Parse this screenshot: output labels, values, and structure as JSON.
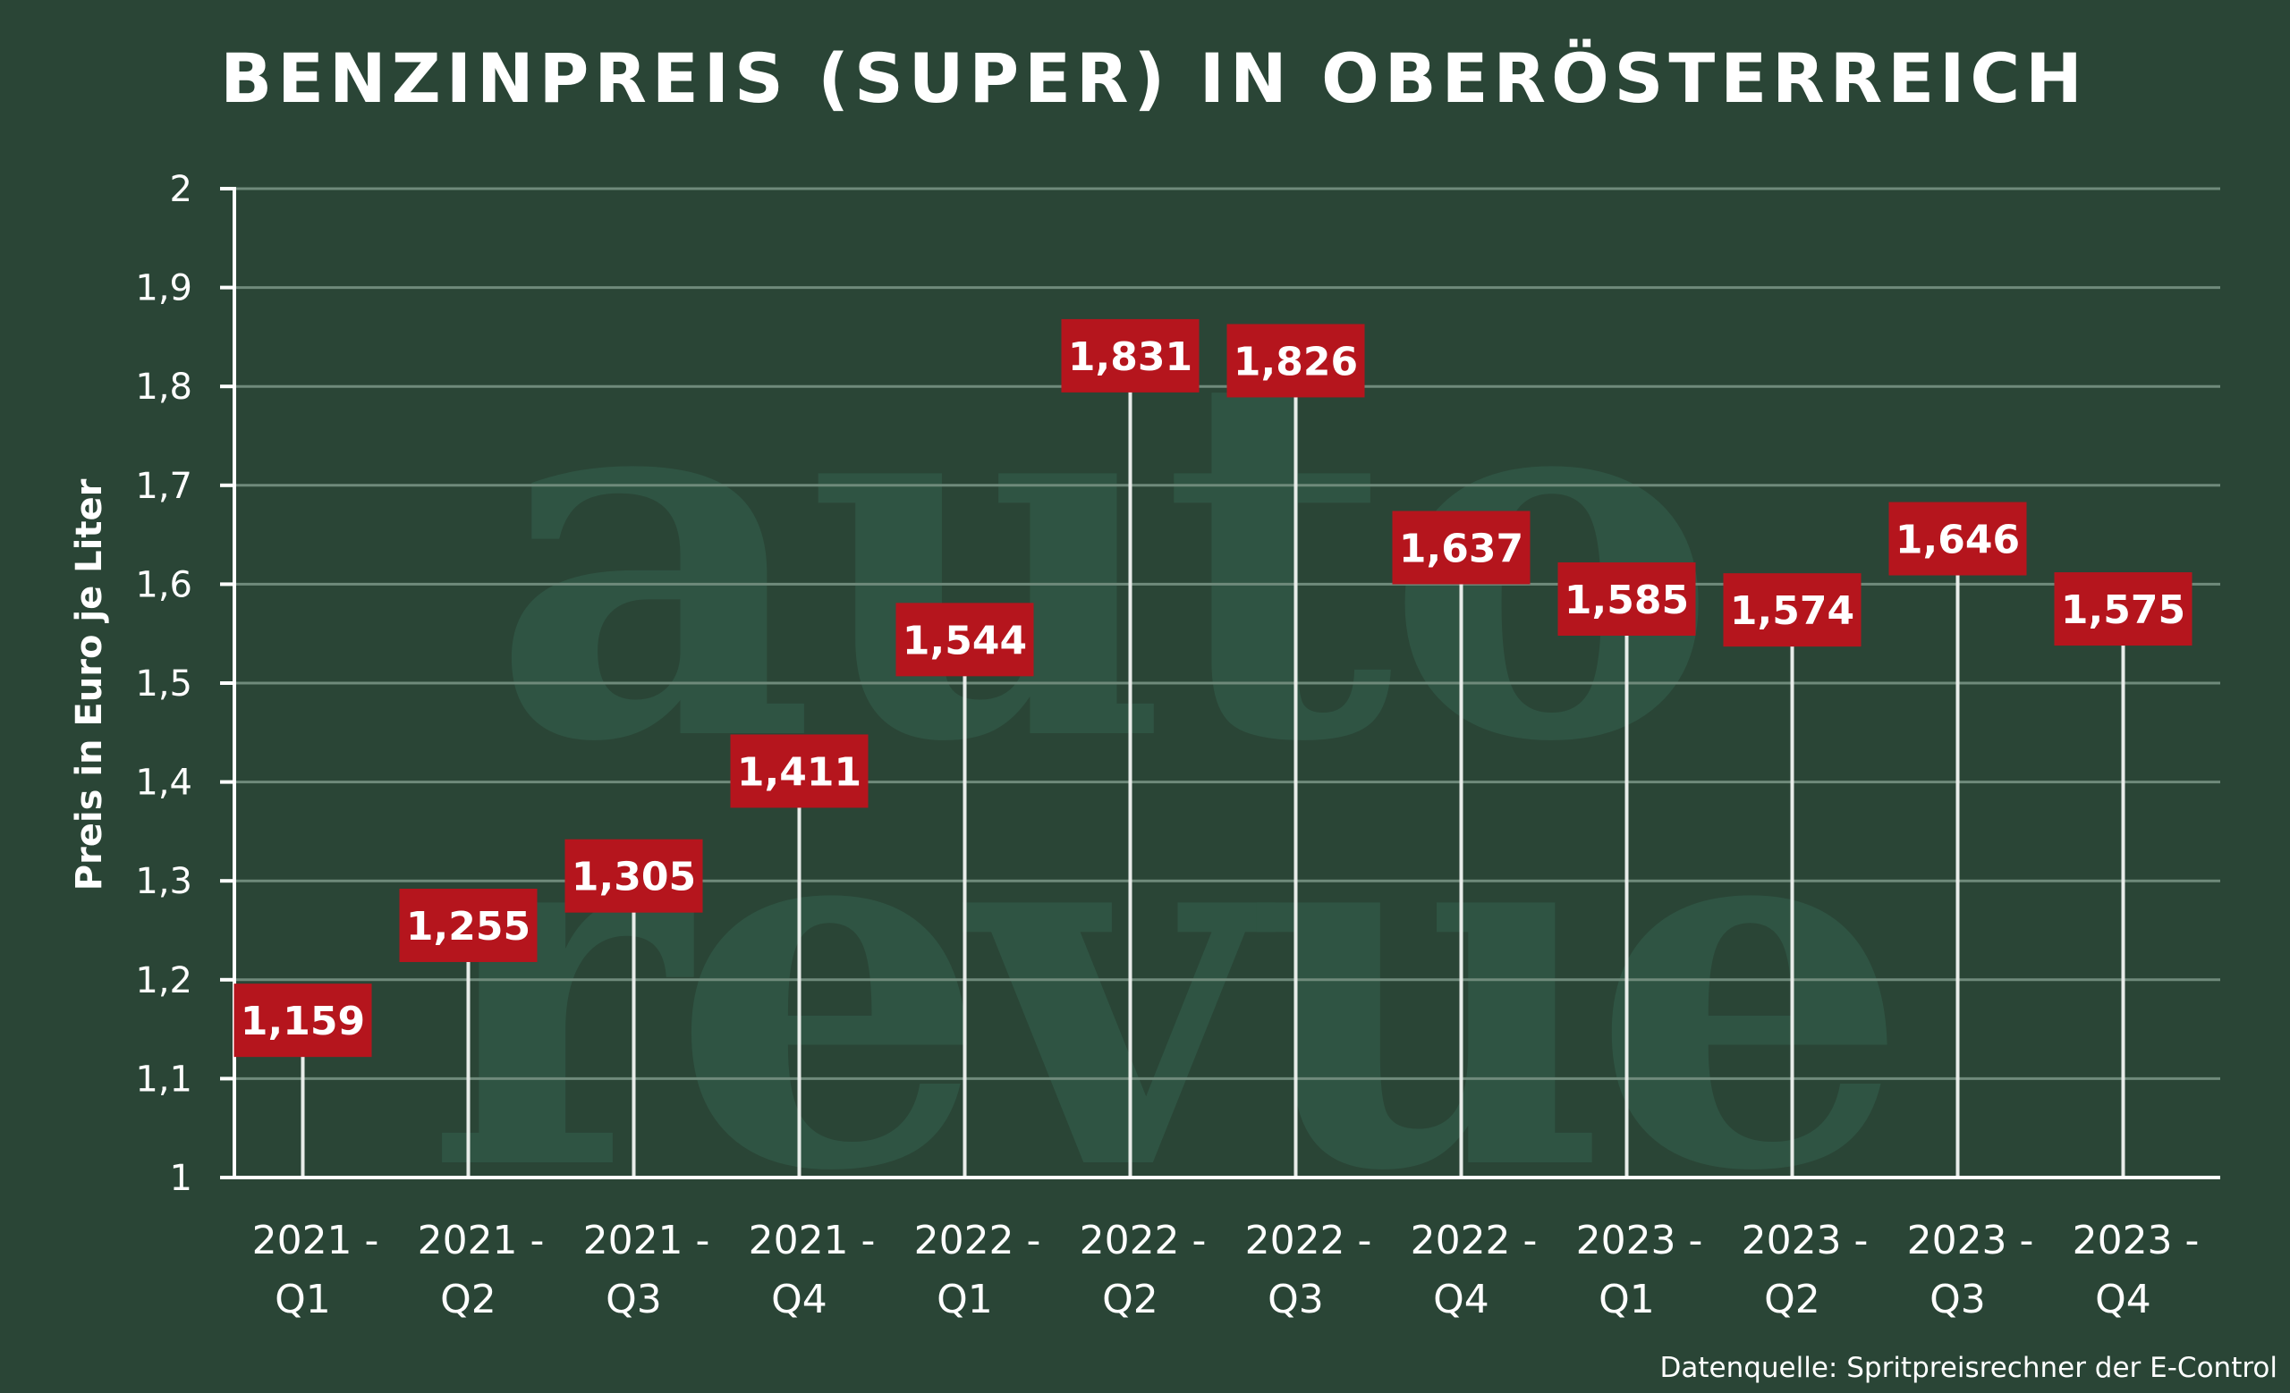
{
  "chart_data": {
    "type": "bar",
    "title": "BENZINPREIS (SUPER) IN OBERÖSTERREICH",
    "ylabel": "Preis in Euro je Liter",
    "xlabel": "",
    "ylim": [
      1,
      2
    ],
    "yticks": [
      1,
      1.1,
      1.2,
      1.3,
      1.4,
      1.5,
      1.6,
      1.7,
      1.8,
      1.9,
      2
    ],
    "ytick_labels": [
      "1",
      "1,1",
      "1,2",
      "1,3",
      "1,4",
      "1,5",
      "1,6",
      "1,7",
      "1,8",
      "1,9",
      "2"
    ],
    "grid": true,
    "categories": [
      [
        "2021 -",
        "Q1"
      ],
      [
        "2021 -",
        "Q2"
      ],
      [
        "2021 -",
        "Q3"
      ],
      [
        "2021 -",
        "Q4"
      ],
      [
        "2022 -",
        "Q1"
      ],
      [
        "2022 -",
        "Q2"
      ],
      [
        "2022 -",
        "Q3"
      ],
      [
        "2022 -",
        "Q4"
      ],
      [
        "2023 -",
        "Q1"
      ],
      [
        "2023 -",
        "Q2"
      ],
      [
        "2023 -",
        "Q3"
      ],
      [
        "2023 -",
        "Q4"
      ]
    ],
    "values": [
      1.159,
      1.255,
      1.305,
      1.411,
      1.544,
      1.831,
      1.826,
      1.637,
      1.585,
      1.574,
      1.646,
      1.575
    ],
    "value_labels": [
      "1,159",
      "1,255",
      "1,305",
      "1,411",
      "1,544",
      "1,831",
      "1,826",
      "1,637",
      "1,585",
      "1,574",
      "1,646",
      "1,575"
    ],
    "source": "Datenquelle: Spritpreisrechner der E-Control",
    "watermark": [
      "auto",
      "revue"
    ],
    "colors": {
      "background": "#2a4536",
      "label_box": "#b5151d",
      "stem": "#e8ece9",
      "grid": "#6f8a7b",
      "text": "#ffffff",
      "watermark": "#2f5443"
    }
  }
}
